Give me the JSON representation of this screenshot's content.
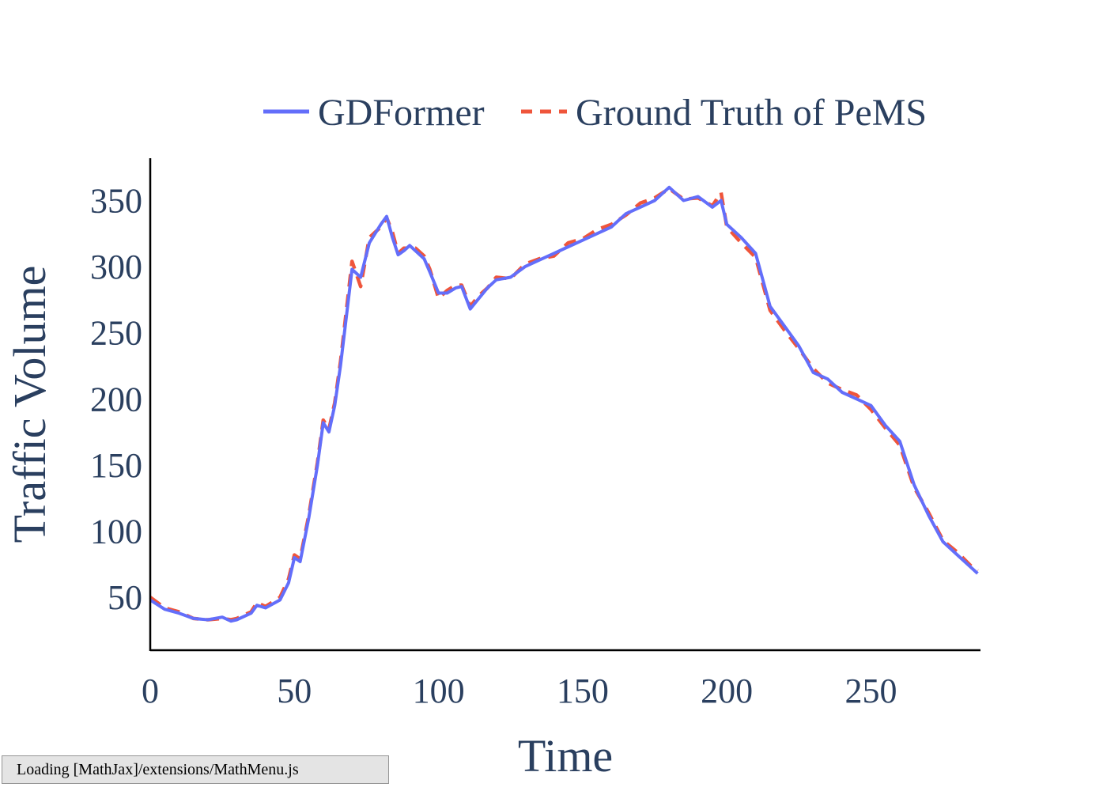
{
  "chart_data": {
    "type": "line",
    "xlabel": "Time",
    "ylabel": "Traffic Volume",
    "xlim": [
      0,
      288
    ],
    "ylim": [
      10,
      382
    ],
    "xticks": [
      0,
      50,
      100,
      150,
      200,
      250
    ],
    "yticks": [
      50,
      100,
      150,
      200,
      250,
      300,
      350
    ],
    "grid": false,
    "legend_position": "top",
    "series": [
      {
        "name": "GDFormer",
        "color": "#636efa",
        "dash": "solid",
        "x": [
          0,
          5,
          10,
          15,
          20,
          25,
          28,
          30,
          35,
          37,
          40,
          45,
          48,
          50,
          52,
          55,
          58,
          60,
          62,
          64,
          66,
          70,
          73,
          76,
          80,
          82,
          84,
          86,
          88,
          90,
          92,
          95,
          97,
          100,
          103,
          106,
          108,
          111,
          114,
          117,
          120,
          125,
          130,
          135,
          140,
          145,
          150,
          155,
          160,
          165,
          170,
          175,
          180,
          185,
          190,
          195,
          198,
          200,
          205,
          210,
          215,
          220,
          225,
          230,
          235,
          240,
          245,
          250,
          255,
          260,
          265,
          270,
          275,
          280,
          285,
          287
        ],
        "y": [
          48,
          41,
          38,
          34,
          33,
          35,
          32,
          33,
          38,
          44,
          42,
          48,
          61,
          80,
          77,
          110,
          150,
          182,
          175,
          195,
          225,
          298,
          292,
          318,
          332,
          338,
          322,
          309,
          312,
          316,
          312,
          306,
          296,
          280,
          280,
          284,
          285,
          268,
          276,
          284,
          290,
          292,
          300,
          305,
          310,
          315,
          320,
          325,
          330,
          340,
          345,
          350,
          360,
          350,
          353,
          345,
          350,
          332,
          322,
          310,
          270,
          255,
          240,
          220,
          215,
          205,
          200,
          195,
          180,
          168,
          135,
          112,
          92,
          82,
          72,
          68
        ]
      },
      {
        "name": "Ground Truth of PeMS",
        "color": "#ef553b",
        "dash": "dash",
        "x": [
          0,
          5,
          10,
          15,
          20,
          25,
          28,
          30,
          35,
          37,
          40,
          45,
          48,
          50,
          52,
          55,
          58,
          60,
          62,
          64,
          66,
          70,
          73,
          76,
          80,
          82,
          84,
          86,
          88,
          90,
          92,
          95,
          97,
          100,
          103,
          106,
          108,
          111,
          114,
          117,
          120,
          125,
          130,
          135,
          140,
          145,
          150,
          155,
          160,
          165,
          170,
          175,
          180,
          185,
          190,
          195,
          198,
          200,
          205,
          210,
          215,
          220,
          225,
          230,
          235,
          240,
          245,
          250,
          255,
          260,
          265,
          270,
          275,
          280,
          285,
          287
        ],
        "y": [
          50,
          42,
          39,
          34,
          33,
          34,
          33,
          34,
          39,
          46,
          43,
          50,
          64,
          82,
          79,
          112,
          152,
          184,
          177,
          197,
          228,
          304,
          285,
          322,
          330,
          337,
          326,
          310,
          314,
          314,
          314,
          308,
          298,
          276,
          282,
          286,
          286,
          270,
          278,
          284,
          292,
          291,
          302,
          306,
          308,
          318,
          321,
          328,
          332,
          339,
          348,
          352,
          359,
          351,
          352,
          346,
          356,
          330,
          318,
          307,
          267,
          252,
          238,
          223,
          212,
          207,
          203,
          192,
          178,
          165,
          133,
          114,
          93,
          84,
          73,
          70
        ]
      }
    ]
  },
  "status": {
    "loading_text": "Loading [MathJax]/extensions/MathMenu.js"
  }
}
